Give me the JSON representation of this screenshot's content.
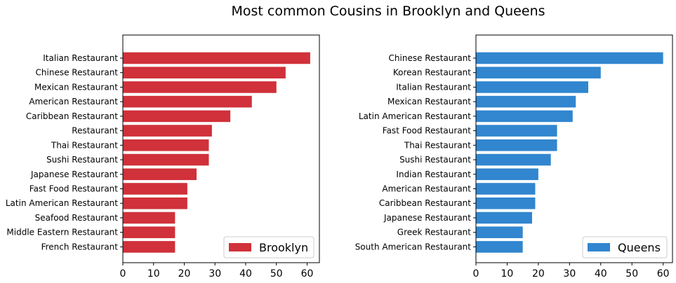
{
  "title": "Most common Cousins in Brooklyn and Queens",
  "chart_data": [
    {
      "type": "bar",
      "orientation": "horizontal",
      "categories": [
        "Italian Restaurant",
        "Chinese Restaurant",
        "Mexican Restaurant",
        "American Restaurant",
        "Caribbean Restaurant",
        "Restaurant",
        "Thai Restaurant",
        "Sushi Restaurant",
        "Japanese Restaurant",
        "Fast Food Restaurant",
        "Latin American Restaurant",
        "Seafood Restaurant",
        "Middle Eastern Restaurant",
        "French Restaurant"
      ],
      "series": [
        {
          "name": "Brooklyn",
          "values": [
            61,
            53,
            50,
            42,
            35,
            29,
            28,
            28,
            24,
            21,
            21,
            17,
            17,
            17
          ],
          "color": "#d0313a"
        }
      ],
      "xticks": [
        0,
        10,
        20,
        30,
        40,
        50,
        60
      ],
      "xlim": [
        0,
        64
      ],
      "legend": "lower-right",
      "grid": false
    },
    {
      "type": "bar",
      "orientation": "horizontal",
      "categories": [
        "Chinese Restaurant",
        "Korean Restaurant",
        "Italian Restaurant",
        "Mexican Restaurant",
        "Latin American Restaurant",
        "Fast Food Restaurant",
        "Thai Restaurant",
        "Sushi Restaurant",
        "Indian Restaurant",
        "American Restaurant",
        "Caribbean Restaurant",
        "Japanese Restaurant",
        "Greek Restaurant",
        "South American Restaurant"
      ],
      "series": [
        {
          "name": "Queens",
          "values": [
            60,
            40,
            36,
            32,
            31,
            26,
            26,
            24,
            20,
            19,
            19,
            18,
            15,
            15
          ],
          "color": "#3186cf"
        }
      ],
      "xticks": [
        0,
        10,
        20,
        30,
        40,
        50,
        60
      ],
      "xlim": [
        0,
        63
      ],
      "legend": "lower-right",
      "grid": false
    }
  ]
}
